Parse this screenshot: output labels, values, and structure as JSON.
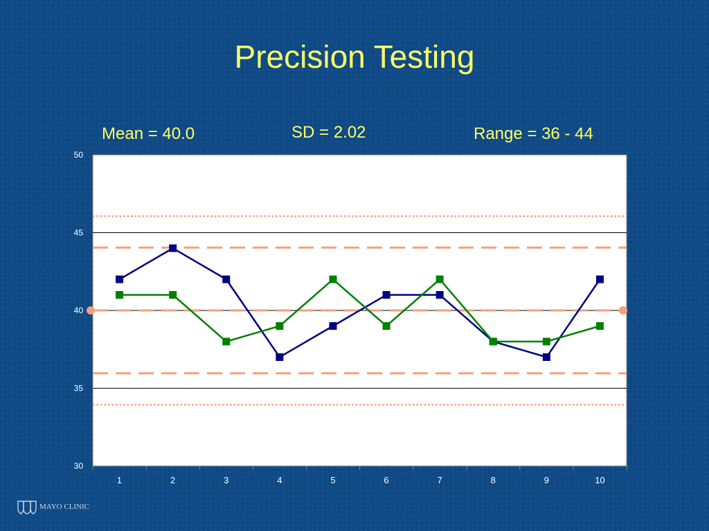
{
  "slide": {
    "title": "Precision Testing",
    "stats": {
      "mean": "Mean = 40.0",
      "sd": "SD = 2.02",
      "range": "Range = 36 - 44"
    },
    "logo_text": "MAYO CLINIC"
  },
  "colors": {
    "background": "#0f4a87",
    "title": "#ffff66",
    "series_1": "#000080",
    "series_2": "#008000",
    "control_lines": "#f4a07a"
  },
  "chart_data": {
    "type": "line",
    "categories": [
      "1",
      "2",
      "3",
      "4",
      "5",
      "6",
      "7",
      "8",
      "9",
      "10"
    ],
    "ylim": [
      30,
      50
    ],
    "yticks": [
      30,
      35,
      40,
      45,
      50
    ],
    "grid": "horizontal",
    "legend": "none",
    "series": [
      {
        "values": [
          42,
          44,
          42,
          37,
          39,
          41,
          41,
          38,
          37,
          42
        ],
        "marker": "square",
        "color": "#000080"
      },
      {
        "values": [
          41,
          41,
          38,
          39,
          42,
          39,
          42,
          38,
          38,
          39
        ],
        "marker": "square",
        "color": "#008000"
      }
    ],
    "reference_lines": [
      {
        "value": 40,
        "style": "dashed",
        "endpoints": "circle"
      },
      {
        "value": 44.04,
        "style": "dashed"
      },
      {
        "value": 35.96,
        "style": "dashed"
      },
      {
        "value": 46.06,
        "style": "dotted"
      },
      {
        "value": 33.94,
        "style": "dotted"
      }
    ]
  }
}
